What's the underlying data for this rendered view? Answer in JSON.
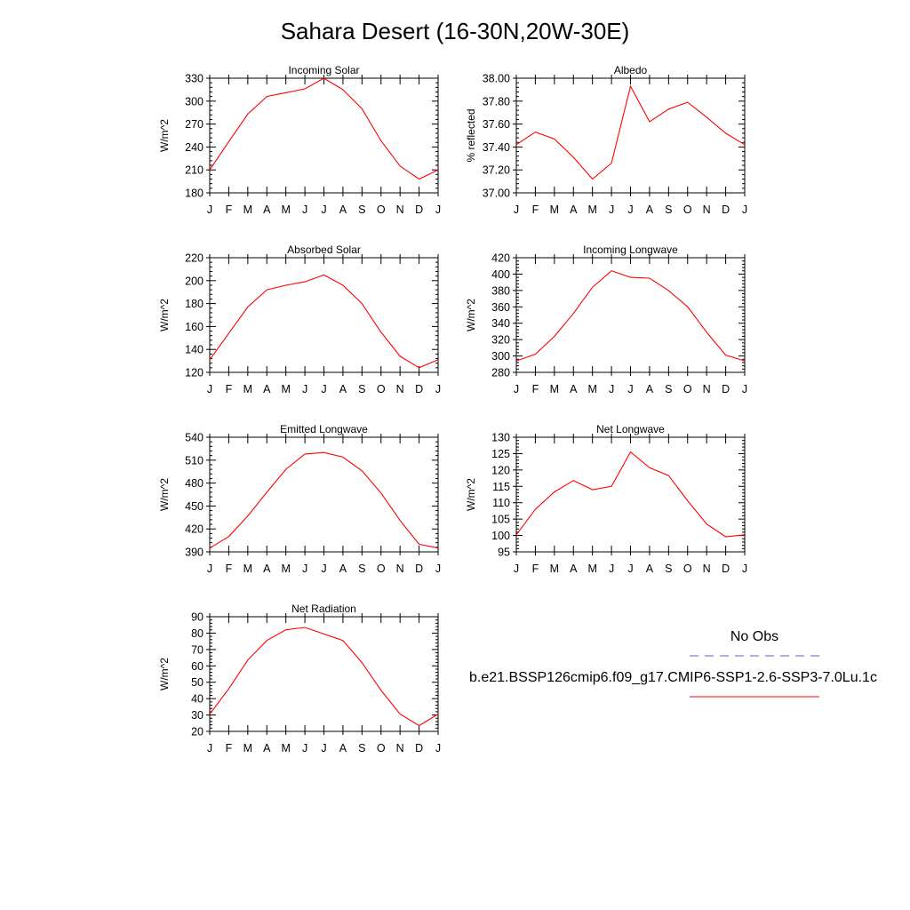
{
  "title": "Sahara Desert (16-30N,20W-30E)",
  "months": [
    "J",
    "F",
    "M",
    "A",
    "M",
    "J",
    "J",
    "A",
    "S",
    "O",
    "N",
    "D",
    "J"
  ],
  "legend": {
    "obs_label": "No Obs",
    "obs_color": "#7f7fd9",
    "model_label": "b.e21.BSSP126cmip6.f09_g17.CMIP6-SSP1-2.6-SSP3-7.0Lu.1c",
    "model_color": "#ff0000"
  },
  "chart_data": [
    {
      "type": "line",
      "title": "Incoming Solar",
      "ylabel": "W/m^2",
      "ylim": [
        180,
        330
      ],
      "yticks": [
        "180",
        "210",
        "240",
        "270",
        "300",
        "330"
      ],
      "x": [
        "J",
        "F",
        "M",
        "A",
        "M",
        "J",
        "J",
        "A",
        "S",
        "O",
        "N",
        "D",
        "J"
      ],
      "series": [
        {
          "values": [
            210,
            247,
            283,
            306,
            311,
            316,
            330,
            315,
            290,
            248,
            215,
            198,
            210
          ]
        }
      ]
    },
    {
      "type": "line",
      "title": "Albedo",
      "ylabel": "% reflected",
      "ylim": [
        37.0,
        38.0
      ],
      "yticks": [
        "37.00",
        "37.20",
        "37.40",
        "37.60",
        "37.80",
        "38.00"
      ],
      "x": [
        "J",
        "F",
        "M",
        "A",
        "M",
        "J",
        "J",
        "A",
        "S",
        "O",
        "N",
        "D",
        "J"
      ],
      "series": [
        {
          "values": [
            37.42,
            37.53,
            37.47,
            37.31,
            37.12,
            37.26,
            37.93,
            37.62,
            37.73,
            37.79,
            37.66,
            37.52,
            37.42
          ]
        }
      ]
    },
    {
      "type": "line",
      "title": "Absorbed Solar",
      "ylabel": "W/m^2",
      "ylim": [
        120,
        220
      ],
      "yticks": [
        "120",
        "140",
        "160",
        "180",
        "200",
        "220"
      ],
      "x": [
        "J",
        "F",
        "M",
        "A",
        "M",
        "J",
        "J",
        "A",
        "S",
        "O",
        "N",
        "D",
        "J"
      ],
      "series": [
        {
          "values": [
            131,
            154,
            177,
            192,
            196,
            199,
            205,
            196,
            180,
            155,
            134,
            124,
            131
          ]
        }
      ]
    },
    {
      "type": "line",
      "title": "Incoming Longwave",
      "ylabel": "W/m^2",
      "ylim": [
        280,
        420
      ],
      "yticks": [
        "280",
        "300",
        "320",
        "340",
        "360",
        "380",
        "400",
        "420"
      ],
      "x": [
        "J",
        "F",
        "M",
        "A",
        "M",
        "J",
        "J",
        "A",
        "S",
        "O",
        "N",
        "D",
        "J"
      ],
      "series": [
        {
          "values": [
            294,
            302,
            324,
            352,
            384,
            404,
            396,
            395,
            380,
            360,
            329,
            301,
            294
          ]
        }
      ]
    },
    {
      "type": "line",
      "title": "Emitted Longwave",
      "ylabel": "W/m^2",
      "ylim": [
        390,
        540
      ],
      "yticks": [
        "390",
        "420",
        "450",
        "480",
        "510",
        "540"
      ],
      "x": [
        "J",
        "F",
        "M",
        "A",
        "M",
        "J",
        "J",
        "A",
        "S",
        "O",
        "N",
        "D",
        "J"
      ],
      "series": [
        {
          "values": [
            395,
            410,
            437,
            468,
            498,
            518,
            520,
            514,
            496,
            467,
            431,
            400,
            395
          ]
        }
      ]
    },
    {
      "type": "line",
      "title": "Net Longwave",
      "ylabel": "W/m^2",
      "ylim": [
        95,
        130
      ],
      "yticks": [
        "95",
        "100",
        "105",
        "110",
        "115",
        "120",
        "125",
        "130"
      ],
      "x": [
        "J",
        "F",
        "M",
        "A",
        "M",
        "J",
        "J",
        "A",
        "S",
        "O",
        "N",
        "D",
        "J"
      ],
      "series": [
        {
          "values": [
            100.2,
            108,
            113.3,
            116.8,
            114,
            115,
            125.5,
            120.7,
            118.3,
            110.6,
            103.5,
            99.6,
            100.2
          ]
        }
      ]
    },
    {
      "type": "line",
      "title": "Net Radiation",
      "ylabel": "W/m^2",
      "ylim": [
        20,
        90
      ],
      "yticks": [
        "20",
        "30",
        "40",
        "50",
        "60",
        "70",
        "80",
        "90"
      ],
      "x": [
        "J",
        "F",
        "M",
        "A",
        "M",
        "J",
        "J",
        "A",
        "S",
        "O",
        "N",
        "D",
        "J"
      ],
      "series": [
        {
          "values": [
            30.5,
            46,
            63.5,
            75.5,
            82,
            83.5,
            79.5,
            75.5,
            62,
            45,
            30.5,
            23.5,
            30.5
          ]
        }
      ]
    }
  ]
}
